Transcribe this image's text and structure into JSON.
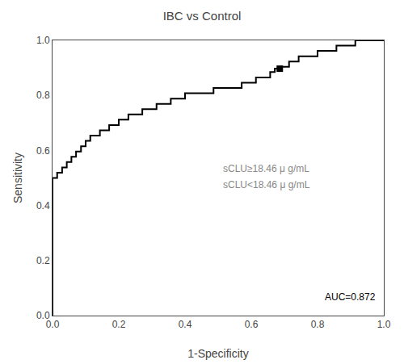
{
  "chart_data": {
    "type": "step",
    "title": "IBC vs Control",
    "xlabel": "1-Specificity",
    "ylabel": "Sensitivity",
    "annotations": [
      "sCLU≥18.46 μ g/mL",
      "sCLU<18.46 μ g/mL",
      "AUC=0.872"
    ],
    "series": [
      {
        "type": "step",
        "color": "#000000",
        "line_style": "solid",
        "x": [
          0.0,
          0.0,
          0.0,
          0.0,
          0.014,
          0.014,
          0.029,
          0.029,
          0.043,
          0.043,
          0.057,
          0.057,
          0.071,
          0.071,
          0.086,
          0.086,
          0.1,
          0.1,
          0.114,
          0.114,
          0.143,
          0.143,
          0.171,
          0.171,
          0.2,
          0.2,
          0.229,
          0.229,
          0.271,
          0.271,
          0.314,
          0.314,
          0.357,
          0.357,
          0.4,
          0.4,
          0.443,
          0.443,
          0.486,
          0.486,
          0.529,
          0.529,
          0.571,
          0.571,
          0.614,
          0.614,
          0.643,
          0.643,
          0.657,
          0.657,
          0.671,
          0.671,
          0.686,
          0.686,
          0.7,
          0.7,
          0.714,
          0.714,
          0.743,
          0.743,
          0.771,
          0.771,
          0.8,
          0.8,
          0.829,
          0.829,
          0.857,
          0.857,
          0.886,
          0.886,
          0.914,
          0.914,
          0.943,
          0.943,
          0.971,
          0.971,
          1.0,
          1.0
        ],
        "values": [
          0.0,
          0.269,
          0.308,
          0.5,
          0.5,
          0.519,
          0.519,
          0.538,
          0.538,
          0.558,
          0.558,
          0.577,
          0.577,
          0.596,
          0.596,
          0.615,
          0.615,
          0.635,
          0.635,
          0.654,
          0.654,
          0.673,
          0.673,
          0.692,
          0.692,
          0.712,
          0.712,
          0.731,
          0.731,
          0.75,
          0.75,
          0.769,
          0.769,
          0.788,
          0.788,
          0.808,
          0.808,
          0.808,
          0.808,
          0.827,
          0.827,
          0.827,
          0.827,
          0.846,
          0.846,
          0.865,
          0.865,
          0.865,
          0.865,
          0.885,
          0.885,
          0.897,
          0.897,
          0.904,
          0.904,
          0.904,
          0.904,
          0.923,
          0.923,
          0.942,
          0.942,
          0.942,
          0.942,
          0.962,
          0.962,
          0.962,
          0.962,
          0.981,
          0.981,
          0.981,
          0.981,
          1.0,
          1.0,
          1.0,
          1.0,
          1.0,
          1.0,
          1.0
        ]
      },
      {
        "type": "scatter",
        "color": "#000000",
        "marker": "square",
        "x": [
          0.686
        ],
        "values": [
          0.897
        ]
      }
    ],
    "xlim": [
      0.0,
      1.0
    ],
    "ylim": [
      0.0,
      1.0
    ],
    "xticks": [
      {
        "value": 0.0,
        "label": "0.0"
      },
      0.2,
      0.4,
      0.6,
      0.8,
      {
        "value": 1.0,
        "label": "1.0"
      }
    ],
    "yticks": [
      {
        "value": 0.0,
        "label": "0.0"
      },
      0.2,
      0.4,
      0.6,
      0.8,
      {
        "value": 1.0,
        "label": "1.0"
      }
    ],
    "grid": false
  }
}
